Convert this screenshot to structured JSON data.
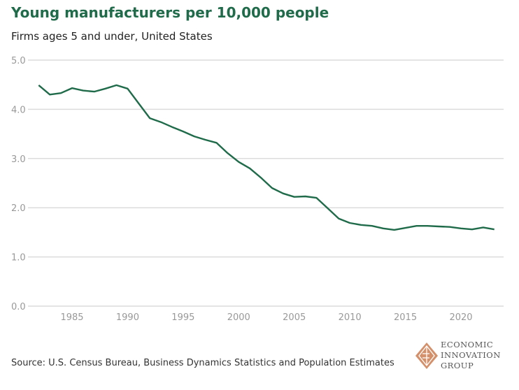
{
  "chart_data": {
    "type": "line",
    "title": "Young manufacturers per 10,000 people",
    "subtitle": "Firms ages 5 and under, United States",
    "xlabel": "",
    "ylabel": "",
    "ylim": [
      0,
      5
    ],
    "xlim": [
      1982,
      2023
    ],
    "yticks": [
      "0.0",
      "1.0",
      "2.0",
      "3.0",
      "4.0",
      "5.0"
    ],
    "xticks": [
      "1985",
      "1990",
      "1995",
      "2000",
      "2005",
      "2010",
      "2015",
      "2020"
    ],
    "grid": true,
    "line_color": "#1f6b4a",
    "series": [
      {
        "name": "Young manufacturers per 10,000 people",
        "x": [
          1982,
          1983,
          1984,
          1985,
          1986,
          1987,
          1988,
          1989,
          1990,
          1991,
          1992,
          1993,
          1994,
          1995,
          1996,
          1997,
          1998,
          1999,
          2000,
          2001,
          2002,
          2003,
          2004,
          2005,
          2006,
          2007,
          2008,
          2009,
          2010,
          2011,
          2012,
          2013,
          2014,
          2015,
          2016,
          2017,
          2018,
          2019,
          2020,
          2021,
          2022,
          2023
        ],
        "values": [
          4.49,
          4.3,
          4.33,
          4.43,
          4.38,
          4.36,
          4.42,
          4.49,
          4.42,
          4.12,
          3.82,
          3.74,
          3.64,
          3.55,
          3.45,
          3.38,
          3.32,
          3.11,
          2.93,
          2.8,
          2.61,
          2.4,
          2.29,
          2.22,
          2.23,
          2.2,
          1.99,
          1.78,
          1.69,
          1.65,
          1.63,
          1.58,
          1.55,
          1.59,
          1.63,
          1.63,
          1.62,
          1.61,
          1.58,
          1.56,
          1.6,
          1.56
        ]
      }
    ]
  },
  "source": "Source: U.S. Census Bureau, Business Dynamics Statistics and Population Estimates",
  "logo": {
    "line1": "ECONOMIC",
    "line2": "INNOVATION",
    "line3": "GROUP",
    "color": "#d4906a"
  }
}
